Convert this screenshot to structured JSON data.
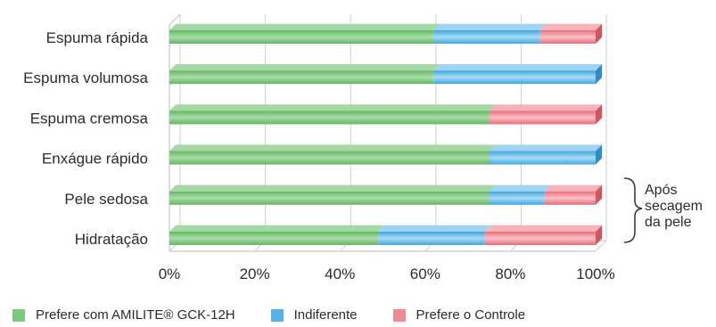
{
  "chart_data": {
    "type": "bar",
    "orientation": "horizontal",
    "stacked": true,
    "categories": [
      "Espuma rápida",
      "Espuma volumosa",
      "Espuma cremosa",
      "Enxágue rápido",
      "Pele sedosa",
      "Hidratação"
    ],
    "series": [
      {
        "name": "Prefere com AMILITE® GCK-12H",
        "values": [
          62,
          62,
          75,
          75,
          75,
          49
        ],
        "color": "#7cc87c"
      },
      {
        "name": "Indiferente",
        "values": [
          25,
          38,
          0,
          25,
          13,
          25
        ],
        "color": "#55b3e6"
      },
      {
        "name": "Prefere o Controle",
        "values": [
          13,
          0,
          25,
          0,
          12,
          26
        ],
        "color": "#f08a92"
      }
    ],
    "xlim": [
      0,
      100
    ],
    "xticks": [
      "0%",
      "20%",
      "40%",
      "60%",
      "80%",
      "100%"
    ],
    "grid": true,
    "legend_position": "bottom",
    "annotation": {
      "text_lines": [
        "Após",
        "secagem",
        "da pele"
      ],
      "applies_to": [
        "Pele sedosa",
        "Hidratação"
      ]
    }
  }
}
